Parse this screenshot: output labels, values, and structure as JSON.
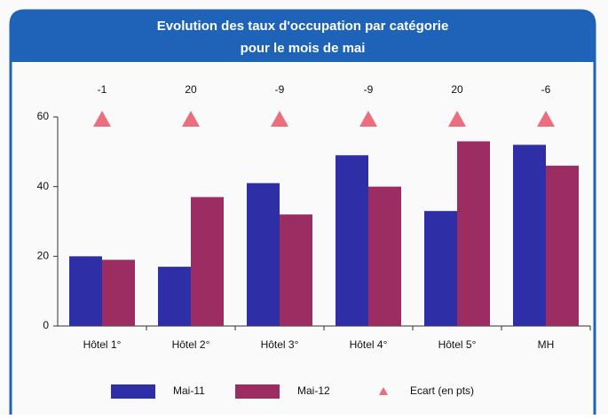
{
  "chart_data": {
    "type": "bar",
    "title": [
      "Evolution des taux d'occupation par catégorie",
      "pour le mois de mai"
    ],
    "categories": [
      "Hôtel 1°",
      "Hôtel 2°",
      "Hôtel 3°",
      "Hôtel 4°",
      "Hôtel 5°",
      "MH"
    ],
    "series": [
      {
        "name": "Mai-11",
        "color": "#2e2ea6",
        "values": [
          20,
          17,
          41,
          49,
          33,
          52
        ]
      },
      {
        "name": "Mai-12",
        "color": "#9b2d62",
        "values": [
          19,
          37,
          32,
          40,
          53,
          46
        ]
      },
      {
        "name": "Ecart (en pts)",
        "color": "#ec6d7c",
        "marker": "triangle",
        "values": [
          -1,
          20,
          -9,
          -9,
          20,
          -6
        ]
      }
    ],
    "ylim": [
      0,
      60
    ],
    "yticks": [
      0,
      20,
      40,
      60
    ],
    "grid": false,
    "legend": "bottom"
  }
}
